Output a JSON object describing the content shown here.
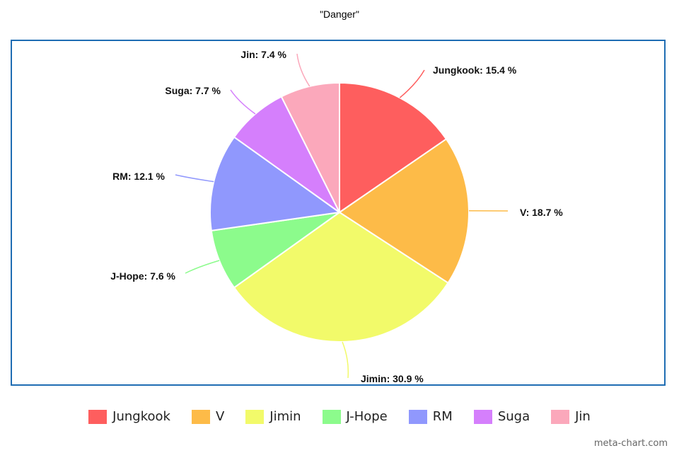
{
  "chart_data": {
    "type": "pie",
    "title": "\"Danger\"",
    "categories": [
      "Jungkook",
      "V",
      "Jimin",
      "J-Hope",
      "RM",
      "Suga",
      "Jin"
    ],
    "values": [
      15.4,
      18.7,
      30.9,
      7.6,
      12.1,
      7.7,
      7.4
    ],
    "labels": [
      "Jungkook: 15.4 %",
      "V: 18.7 %",
      "Jimin: 30.9 %",
      "J-Hope: 7.6 %",
      "RM: 12.1 %",
      "Suga: 7.7 %",
      "Jin: 7.4 %"
    ],
    "colors": [
      "#fe5e5e",
      "#fdbb48",
      "#f2fa6a",
      "#8cfb8c",
      "#9098fd",
      "#d57ffc",
      "#fba8bb"
    ],
    "legend_position": "bottom"
  },
  "watermark": "meta-chart.com"
}
